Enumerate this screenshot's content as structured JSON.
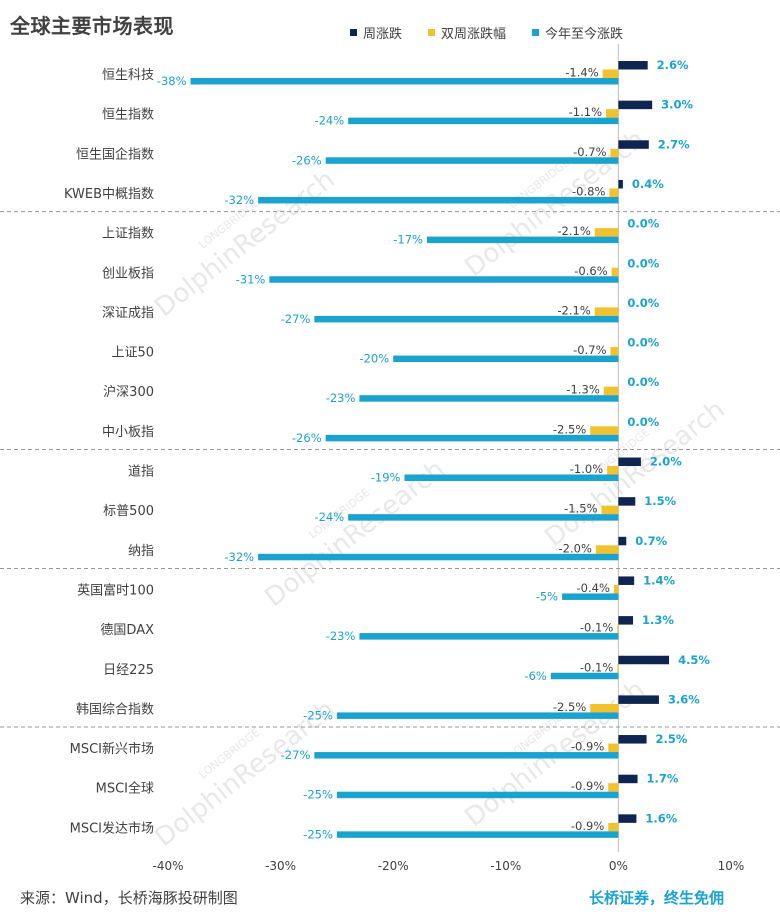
{
  "title": "全球主要市场表现",
  "legend": [
    {
      "name": "周涨跌",
      "color": "#0d2550"
    },
    {
      "name": "双周涨跌幅",
      "color": "#f2c12e"
    },
    {
      "name": "今年至今涨跌",
      "color": "#1aa3cf"
    }
  ],
  "footer": {
    "source": "来源：Wind，长桥海豚投研制图",
    "brand": "长桥证券，终生免佣"
  },
  "watermark": {
    "text": "DolphinResearch",
    "sub": "LONGBRIDGE"
  },
  "chart_data": {
    "type": "bar",
    "orientation": "horizontal",
    "categories": [
      "恒生科技",
      "恒生指数",
      "恒生国企指数",
      "KWEB中概指数",
      "上证指数",
      "创业板指",
      "深证成指",
      "上证50",
      "沪深300",
      "中小板指",
      "道指",
      "标普500",
      "纳指",
      "英国富时100",
      "德国DAX",
      "日经225",
      "韩国综合指数",
      "MSCI新兴市场",
      "MSCI全球",
      "MSCI发达市场"
    ],
    "series": [
      {
        "name": "周涨跌",
        "values": [
          2.6,
          3.0,
          2.7,
          0.4,
          0.0,
          0.0,
          0.0,
          0.0,
          0.0,
          0.0,
          2.0,
          1.5,
          0.7,
          1.4,
          1.3,
          4.5,
          3.6,
          2.5,
          1.7,
          1.6
        ],
        "labels": [
          "2.6%",
          "3.0%",
          "2.7%",
          "0.4%",
          "0.0%",
          "0.0%",
          "0.0%",
          "0.0%",
          "0.0%",
          "0.0%",
          "2.0%",
          "1.5%",
          "0.7%",
          "1.4%",
          "1.3%",
          "4.5%",
          "3.6%",
          "2.5%",
          "1.7%",
          "1.6%"
        ]
      },
      {
        "name": "双周涨跌幅",
        "values": [
          -1.4,
          -1.1,
          -0.7,
          -0.8,
          -2.1,
          -0.6,
          -2.1,
          -0.7,
          -1.3,
          -2.5,
          -1.0,
          -1.5,
          -2.0,
          -0.4,
          -0.1,
          -0.1,
          -2.5,
          -0.9,
          -0.9,
          -0.9
        ],
        "labels": [
          "-1.4%",
          "-1.1%",
          "-0.7%",
          "-0.8%",
          "-2.1%",
          "-0.6%",
          "-2.1%",
          "-0.7%",
          "-1.3%",
          "-2.5%",
          "-1.0%",
          "-1.5%",
          "-2.0%",
          "-0.4%",
          "-0.1%",
          "-0.1%",
          "-2.5%",
          "-0.9%",
          "-0.9%",
          "-0.9%"
        ]
      },
      {
        "name": "今年至今涨跌",
        "values": [
          -38,
          -24,
          -26,
          -32,
          -17,
          -31,
          -27,
          -20,
          -23,
          -26,
          -19,
          -24,
          -32,
          -5,
          -23,
          -6,
          -25,
          -27,
          -25,
          -25
        ],
        "labels": [
          "-38%",
          "-24%",
          "-26%",
          "-32%",
          "-17%",
          "-31%",
          "-27%",
          "-20%",
          "-23%",
          "-26%",
          "-19%",
          "-24%",
          "-32%",
          "-5%",
          "-23%",
          "-6%",
          "-25%",
          "-27%",
          "-25%",
          "-25%"
        ]
      }
    ],
    "xlim": [
      -40,
      10
    ],
    "xticks": [
      -40,
      -30,
      -20,
      -10,
      0,
      10
    ],
    "xtick_labels": [
      "-40%",
      "-30%",
      "-20%",
      "-10%",
      "0%",
      "10%"
    ],
    "group_separators_after": [
      "KWEB中概指数",
      "中小板指",
      "纳指",
      "韩国综合指数"
    ],
    "grid": false,
    "legend_position": "top"
  }
}
